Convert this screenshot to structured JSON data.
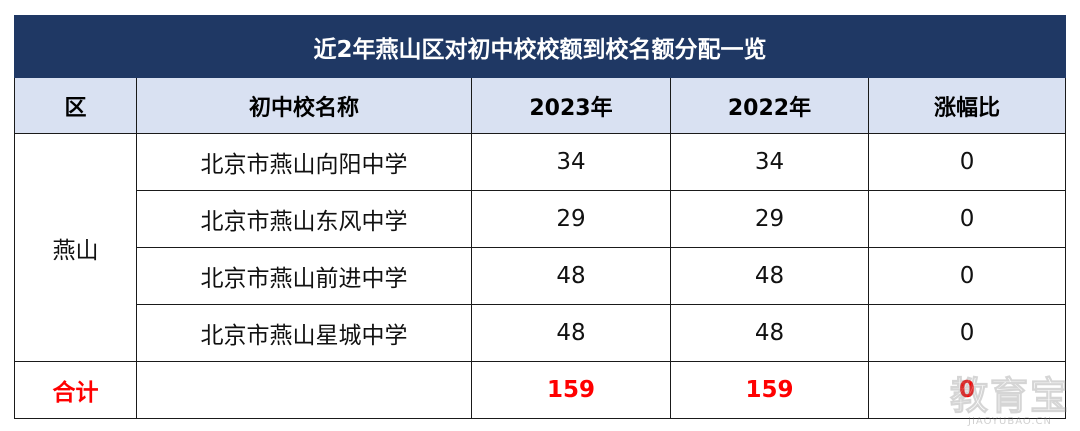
{
  "table": {
    "title": "近2年燕山区对初中校校额到校名额分配一览",
    "headers": [
      "区",
      "初中校名称",
      "2023年",
      "2022年",
      "涨幅比"
    ],
    "district": "燕山",
    "rows": [
      {
        "school": "北京市燕山向阳中学",
        "y2023": "34",
        "y2022": "34",
        "ratio": "0"
      },
      {
        "school": "北京市燕山东风中学",
        "y2023": "29",
        "y2022": "29",
        "ratio": "0"
      },
      {
        "school": "北京市燕山前进中学",
        "y2023": "48",
        "y2022": "48",
        "ratio": "0"
      },
      {
        "school": "北京市燕山星城中学",
        "y2023": "48",
        "y2022": "48",
        "ratio": "0"
      }
    ],
    "total": {
      "label": "合计",
      "y2023": "159",
      "y2022": "159",
      "ratio": "0"
    }
  },
  "watermark": {
    "cn": "教育宝",
    "en": "JIAOYUBAO.CN"
  },
  "colors": {
    "title_bg": "#1f3864",
    "header_bg": "#d9e1f2",
    "total_text": "#ff0000"
  }
}
